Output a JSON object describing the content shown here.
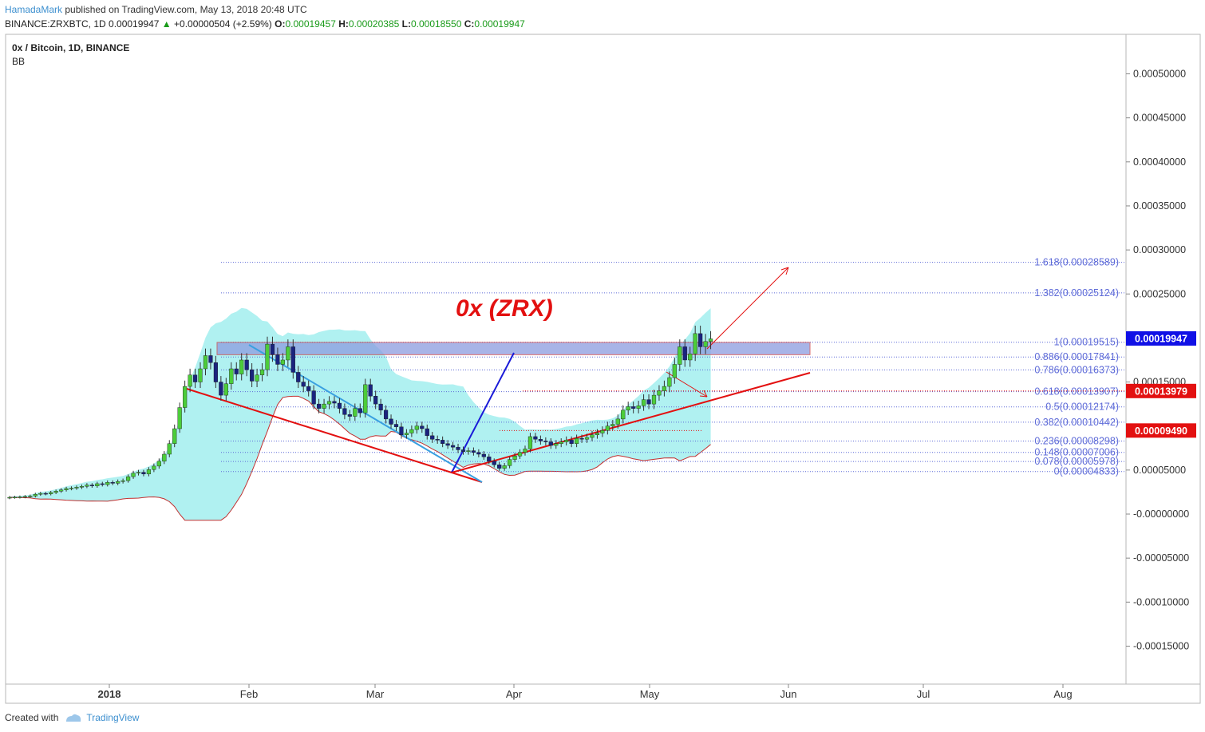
{
  "header": {
    "author": "HamadaMark",
    "published": "published on TradingView.com, May 13, 2018 20:48 UTC",
    "symbol": "BINANCE:ZRXBTC, 1D",
    "last": "0.00019947",
    "change": "+0.00000504 (+2.59%)",
    "o_label": "O:",
    "o_value": "0.00019457",
    "h_label": "H:",
    "h_value": "0.00020385",
    "l_label": "L:",
    "l_value": "0.00018550",
    "c_label": "C:",
    "c_value": "0.00019947"
  },
  "legend": {
    "title": "0x / Bitcoin, 1D, BINANCE",
    "indicator": "BB"
  },
  "annotation": {
    "text": "0x (ZRX)",
    "color": "#e31010"
  },
  "footer": {
    "created_with": "Created with",
    "brand": "TradingView"
  },
  "colors": {
    "up": "#4ccd3a",
    "down": "#1a237e",
    "bb_fill": "#a7f0f0",
    "bb_line": "#c23030",
    "fib": "#5e6bd8",
    "zone_fill": "#8c9ce0",
    "zone_stroke": "#d04040",
    "axis_text": "#333333",
    "price_tag_blue": "#1010e6",
    "price_tag_red": "#e31010"
  },
  "chart_data": {
    "type": "candlestick",
    "title": "0x / Bitcoin, 1D, BINANCE",
    "ylim": [
      -0.00019,
      0.00055
    ],
    "y_ticks": [
      "0.00050000",
      "0.00045000",
      "0.00040000",
      "0.00035000",
      "0.00030000",
      "0.00025000",
      "0.00015000",
      "0.00005000",
      "-0.00000000",
      "-0.00005000",
      "-0.00010000",
      "-0.00015000"
    ],
    "x_ticks": [
      "2018",
      "Feb",
      "Mar",
      "Apr",
      "May",
      "Jun",
      "Jul",
      "Aug"
    ],
    "price_tags": [
      {
        "value": "0.00019947",
        "kind": "last"
      },
      {
        "value": "0.00013979",
        "kind": "level"
      },
      {
        "value": "0.00009490",
        "kind": "level"
      }
    ],
    "fib_levels": [
      {
        "label": "1.618(0.00028589)",
        "value": 0.00028589
      },
      {
        "label": "1.382(0.00025124)",
        "value": 0.00025124
      },
      {
        "label": "1(0.00019515)",
        "value": 0.00019515
      },
      {
        "label": "0.886(0.00017841)",
        "value": 0.00017841
      },
      {
        "label": "0.786(0.00016373)",
        "value": 0.00016373
      },
      {
        "label": "0.618(0.00013907)",
        "value": 0.00013907
      },
      {
        "label": "0.5(0.00012174)",
        "value": 0.00012174
      },
      {
        "label": "0.382(0.00010442)",
        "value": 0.00010442
      },
      {
        "label": "0.236(0.00008298)",
        "value": 8.298e-05
      },
      {
        "label": "0.148(0.00007006)",
        "value": 7.006e-05
      },
      {
        "label": "0.078(0.00005978)",
        "value": 5.978e-05
      },
      {
        "label": "0(0.00004833)",
        "value": 4.833e-05
      }
    ],
    "ohlc_close": [
      1.9e-05,
      1.92e-05,
      1.95e-05,
      2e-05,
      2.05e-05,
      2.25e-05,
      2.35e-05,
      2.3e-05,
      2.45e-05,
      2.6e-05,
      2.75e-05,
      2.9e-05,
      2.95e-05,
      3.05e-05,
      3.15e-05,
      3.3e-05,
      3.2e-05,
      3.45e-05,
      3.35e-05,
      3.6e-05,
      3.5e-05,
      3.7e-05,
      3.8e-05,
      4.25e-05,
      4.65e-05,
      4.75e-05,
      4.55e-05,
      5.05e-05,
      5.45e-05,
      6e-05,
      6.8e-05,
      8e-05,
      9.7e-05,
      0.000121,
      0.000145,
      0.000158,
      0.00015,
      0.000165,
      0.00018,
      0.000172,
      0.00015,
      0.000135,
      0.000148,
      0.000165,
      0.000159,
      0.000175,
      0.000164,
      0.000151,
      0.000158,
      0.000164,
      0.000193,
      0.000181,
      0.00017,
      0.000175,
      0.00019,
      0.000161,
      0.00015,
      0.000145,
      0.00014,
      0.000125,
      0.00012,
      0.000125,
      0.000128,
      0.000126,
      0.00012,
      0.000113,
      0.000111,
      0.00012,
      0.000115,
      0.000147,
      0.000134,
      0.000125,
      0.000118,
      0.000108,
      0.000102,
      9.9e-05,
      9e-05,
      9.2e-05,
      9.6e-05,
      0.0001,
      9.7e-05,
      8.9e-05,
      8.5e-05,
      8.4e-05,
      8e-05,
      7.8e-05,
      7.6e-05,
      7.3e-05,
      7.1e-05,
      7.2e-05,
      7e-05,
      6.8e-05,
      6.5e-05,
      6e-05,
      5.6e-05,
      5.2e-05,
      5.5e-05,
      6.2e-05,
      6.6e-05,
      7e-05,
      7.4e-05,
      8.8e-05,
      8.5e-05,
      8.3e-05,
      8.2e-05,
      7.8e-05,
      8e-05,
      8.2e-05,
      8.4e-05,
      8e-05,
      8.6e-05,
      8.5e-05,
      8.7e-05,
      9e-05,
      9.2e-05,
      9.5e-05,
      0.0001,
      0.000102,
      0.000108,
      0.000118,
      0.000122,
      0.00012,
      0.000123,
      0.00013,
      0.000125,
      0.000135,
      0.00014,
      0.000145,
      0.000155,
      0.00017,
      0.00019,
      0.000175,
      0.000182,
      0.000205,
      0.00019,
      0.000196,
      0.000199
    ]
  }
}
